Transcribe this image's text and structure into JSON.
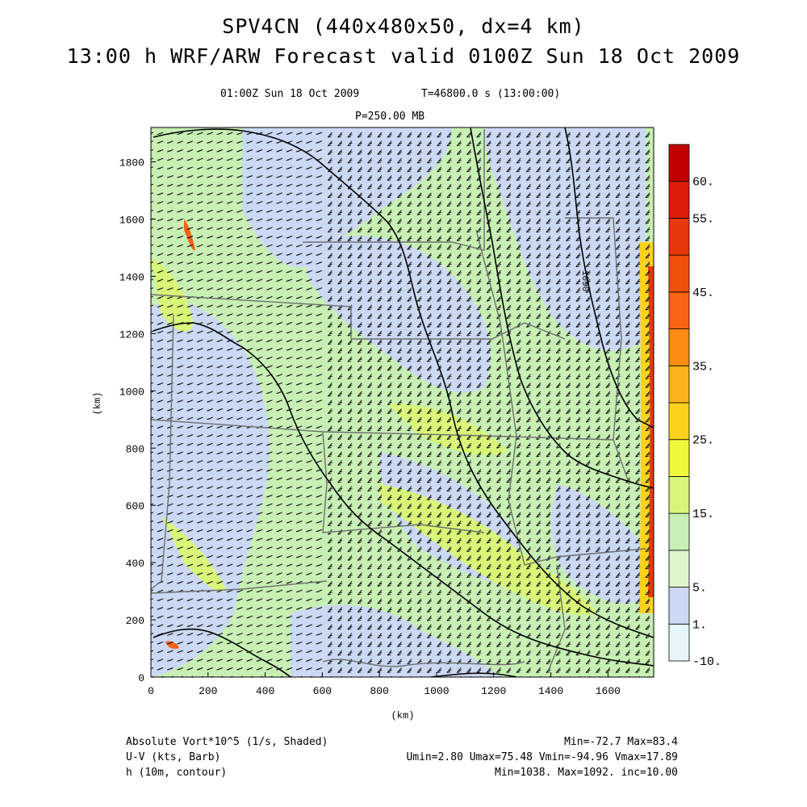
{
  "header": {
    "title_line1": "SPV4CN (440x480x50, dx=4 km)",
    "title_line2": "13:00 h WRF/ARW Forecast valid 0100Z Sun 18 Oct 2009",
    "valid_time": "01:00Z Sun 18 Oct 2009",
    "model_time": "T=46800.0 s (13:00:00)",
    "pressure_level": "P=250.00 MB"
  },
  "footer": {
    "field1_label": "Absolute Vort*10^5 (1/s, Shaded)",
    "field1_stats": "Min=-72.7 Max=83.4",
    "field2_label": "U-V (kts, Barb)",
    "field2_stats": "Umin=2.80 Umax=75.48 Vmin=-94.96 Vmax=17.89",
    "field3_label": "h (10m, contour)",
    "field3_stats": "Min=1038. Max=1092. inc=10.00"
  },
  "colors": {
    "vort_lt1": "#e6f6fa",
    "vort_1_5": "#cbd9f4",
    "vort_5_10": "#c8f0b4",
    "vort_10_15": "#d8f778",
    "vort_15_20": "#f0f83c",
    "vort_20_25": "#fcd21e",
    "vort_25_30": "#fcb41e",
    "vort_high": "#e8380a",
    "contour": "#000000",
    "state_lines": "#6e6e6e",
    "barbs": "#141414"
  },
  "chart_data": {
    "type": "heatmap",
    "xlabel": "(km)",
    "ylabel": "(km)",
    "xlim": [
      0,
      1760
    ],
    "ylim": [
      0,
      1920
    ],
    "x_ticks": [
      "0",
      "200",
      "400",
      "600",
      "800",
      "1000",
      "1200",
      "1400",
      "1600"
    ],
    "y_ticks": [
      "0",
      "200",
      "400",
      "600",
      "800",
      "1000",
      "1200",
      "1400",
      "1600",
      "1800"
    ],
    "contour_label": "1090",
    "colorbar": {
      "levels": [
        -10,
        1,
        5,
        10,
        15,
        20,
        25,
        30,
        35,
        40,
        45,
        50,
        55,
        60
      ],
      "labels": [
        "60.",
        "55.",
        "45.",
        "35.",
        "25.",
        "15.",
        "5.",
        "1.",
        "-10."
      ],
      "colors": [
        "#e6f6fa",
        "#cbd9f4",
        "#ddf5cc",
        "#c8f0b4",
        "#d8f778",
        "#f0f83c",
        "#fcd21e",
        "#fcb41e",
        "#fc8c14",
        "#f86414",
        "#f0500a",
        "#e8380a",
        "#dc1e08",
        "#c00000"
      ]
    }
  }
}
